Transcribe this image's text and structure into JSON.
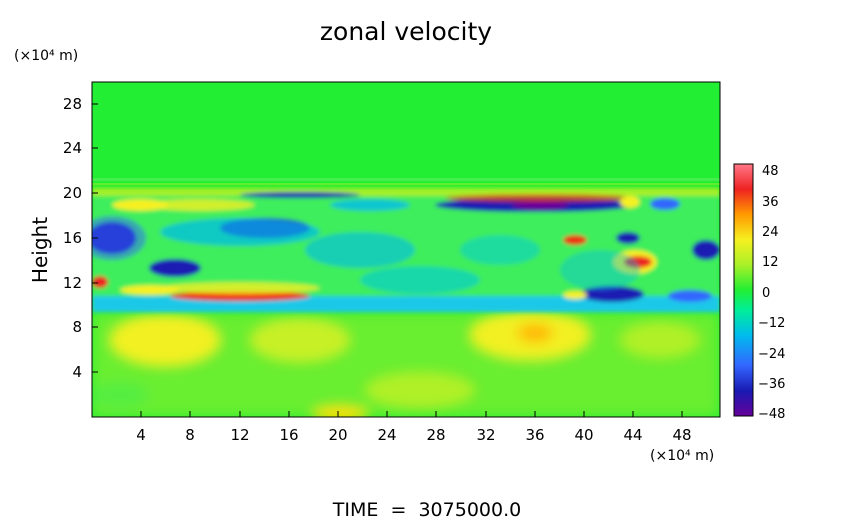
{
  "chart_data": {
    "type": "heatmap",
    "title": "zonal velocity",
    "ylabel": "Height",
    "xlabel": "",
    "x_unit": "(×10⁴ m)",
    "y_unit": "(×10⁴ m)",
    "x_ticks": [
      "4",
      "8",
      "12",
      "16",
      "20",
      "24",
      "28",
      "32",
      "36",
      "40",
      "44",
      "48"
    ],
    "y_ticks": [
      "4",
      "8",
      "12",
      "16",
      "20",
      "24",
      "28"
    ],
    "xlim": [
      0,
      51
    ],
    "ylim": [
      0,
      30
    ],
    "colorbar": {
      "ticks": [
        "48",
        "36",
        "24",
        "12",
        "0",
        "−12",
        "−24",
        "−36",
        "−48"
      ],
      "range": [
        -48,
        48
      ]
    },
    "footer": "TIME  =  3075000.0",
    "colors": {
      "background_field": "#22ee33",
      "colormap": [
        "#660099",
        "#1a1ab3",
        "#3366ff",
        "#00bbee",
        "#00ee99",
        "#22ee33",
        "#aaf028",
        "#f6f020",
        "#ff9900",
        "#ee2222",
        "#ff7788"
      ]
    }
  }
}
